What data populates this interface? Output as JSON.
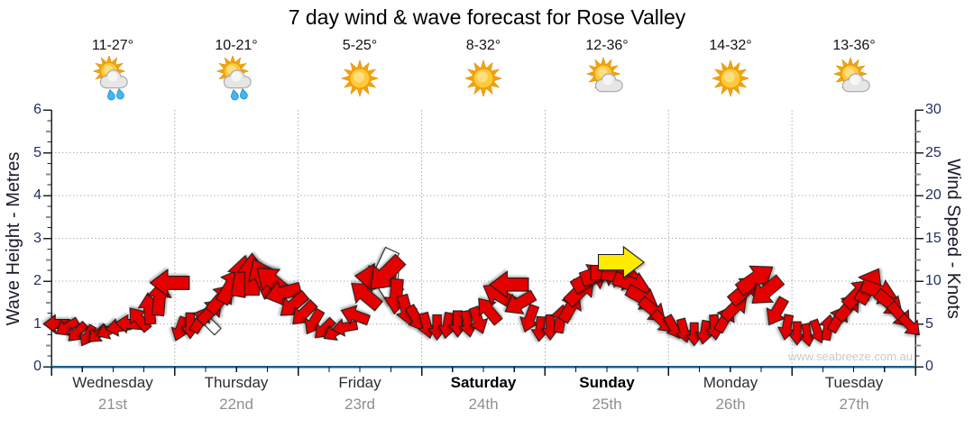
{
  "title": "7 day wind & wave forecast for Rose Valley",
  "watermark": "www.seabreeze.com.au",
  "chart_data": {
    "type": "scatter",
    "subtype": "wind-direction-arrow-timeseries",
    "title": "7 day wind & wave forecast for Rose Valley",
    "left_axis": {
      "label": "Wave Height - Metres",
      "min": 0,
      "max": 6,
      "ticks": [
        0,
        1,
        2,
        3,
        4,
        5,
        6
      ]
    },
    "right_axis": {
      "label": "Wind Speed - Knots",
      "min": 0,
      "max": 30,
      "ticks": [
        0,
        5,
        10,
        15,
        20,
        25,
        30
      ]
    },
    "x_axis": {
      "hours_total": 168,
      "days_count": 7,
      "minor_tick_hours": 6
    },
    "grid": {
      "horizontal_dotted_at_metres": [
        1,
        2,
        3,
        4,
        5
      ],
      "vertical_dotted_at_day_boundaries": true
    },
    "days": [
      {
        "name": "Wednesday",
        "date": "21st",
        "temp": "11-27°",
        "icon": "sun-cloud-rain",
        "weekend": false
      },
      {
        "name": "Thursday",
        "date": "22nd",
        "temp": "10-21°",
        "icon": "sun-cloud-rain",
        "weekend": false
      },
      {
        "name": "Friday",
        "date": "23rd",
        "temp": "5-25°",
        "icon": "sun",
        "weekend": false
      },
      {
        "name": "Saturday",
        "date": "24th",
        "temp": "8-32°",
        "icon": "sun",
        "weekend": true
      },
      {
        "name": "Sunday",
        "date": "25th",
        "temp": "12-36°",
        "icon": "sun-cloud",
        "weekend": true
      },
      {
        "name": "Monday",
        "date": "26th",
        "temp": "14-32°",
        "icon": "sun",
        "weekend": false
      },
      {
        "name": "Tuesday",
        "date": "27th",
        "temp": "13-36°",
        "icon": "sun-cloud",
        "weekend": false
      }
    ],
    "arrow_format": [
      "hour_from_start",
      "wind_speed_knots",
      "screen_direction_deg_0_is_right",
      "color_code r|w|y"
    ],
    "arrows": [
      [
        1,
        5,
        180
      ],
      [
        3,
        4.6,
        150
      ],
      [
        5,
        4,
        135
      ],
      [
        7,
        3.6,
        120
      ],
      [
        9,
        3.8,
        140
      ],
      [
        11,
        4.2,
        155
      ],
      [
        13,
        4.6,
        170
      ],
      [
        15,
        5,
        -175
      ],
      [
        17,
        5.6,
        -130
      ],
      [
        19,
        6.8,
        -95
      ],
      [
        21,
        8,
        -85
      ],
      [
        23,
        9.8,
        180
      ],
      [
        25,
        4.4,
        110
      ],
      [
        27,
        4.8,
        90
      ],
      [
        29,
        5.5,
        -60
      ],
      [
        30.5,
        5.2,
        -135,
        "w"
      ],
      [
        31,
        6.5,
        -45
      ],
      [
        33,
        8,
        -50
      ],
      [
        35,
        9.5,
        -60
      ],
      [
        37,
        10.6,
        -80
      ],
      [
        39,
        10.8,
        -90
      ],
      [
        41,
        10.4,
        -115
      ],
      [
        43,
        10,
        -140
      ],
      [
        45,
        8.6,
        165
      ],
      [
        47,
        7.2,
        140
      ],
      [
        49,
        6.2,
        135
      ],
      [
        51,
        5.2,
        120
      ],
      [
        53,
        4.4,
        135
      ],
      [
        55,
        4,
        150
      ],
      [
        57,
        4.6,
        170
      ],
      [
        59,
        6,
        -160
      ],
      [
        61,
        8.4,
        -140
      ],
      [
        63,
        10.4,
        -175
      ],
      [
        64.5,
        11.3,
        115,
        "w"
      ],
      [
        65,
        10.8,
        135
      ],
      [
        66,
        9.4,
        95,
        "w"
      ],
      [
        67,
        8.2,
        95
      ],
      [
        69,
        6.6,
        75
      ],
      [
        71,
        5.6,
        60
      ],
      [
        73,
        4.8,
        75
      ],
      [
        75,
        4.6,
        90
      ],
      [
        77,
        4.8,
        100
      ],
      [
        79,
        5,
        90
      ],
      [
        81,
        5,
        80
      ],
      [
        83,
        5.4,
        70
      ],
      [
        85,
        6.6,
        -130
      ],
      [
        87,
        8.4,
        -150
      ],
      [
        89,
        9.6,
        180
      ],
      [
        91,
        7.4,
        150
      ],
      [
        93,
        5.6,
        110
      ],
      [
        95,
        4.4,
        95
      ],
      [
        97,
        4.6,
        90
      ],
      [
        99,
        5.6,
        -80
      ],
      [
        101,
        7,
        -60
      ],
      [
        103,
        9,
        -45
      ],
      [
        105,
        10.4,
        -30
      ],
      [
        107,
        11,
        -20
      ],
      [
        109,
        11,
        0
      ],
      [
        110.8,
        12.2,
        0,
        "y"
      ],
      [
        111,
        10.6,
        10
      ],
      [
        113,
        9.6,
        20
      ],
      [
        115,
        8,
        30
      ],
      [
        117,
        6.6,
        40
      ],
      [
        119,
        5.2,
        45
      ],
      [
        121,
        4.6,
        60
      ],
      [
        123,
        4.2,
        75
      ],
      [
        125,
        3.8,
        90
      ],
      [
        127,
        4,
        100
      ],
      [
        129,
        4.6,
        85
      ],
      [
        131,
        5.6,
        -60
      ],
      [
        133,
        7,
        -45
      ],
      [
        135,
        9,
        -40
      ],
      [
        137,
        10.3,
        -35
      ],
      [
        139,
        8.8,
        140
      ],
      [
        141,
        6.4,
        120
      ],
      [
        143,
        4.6,
        100
      ],
      [
        145,
        3.9,
        90
      ],
      [
        147,
        3.7,
        80
      ],
      [
        149,
        4.1,
        70
      ],
      [
        151,
        4.6,
        -80
      ],
      [
        153,
        5.6,
        -60
      ],
      [
        155,
        7,
        -50
      ],
      [
        157,
        8.6,
        -45
      ],
      [
        159,
        9.5,
        -60
      ],
      [
        161,
        8.8,
        20
      ],
      [
        163,
        7.4,
        40
      ],
      [
        165,
        6,
        50
      ],
      [
        167,
        4.8,
        45
      ]
    ],
    "colors": {
      "arrow_red": "#e50505",
      "arrow_yellow": "#ffeb00",
      "arrow_white": "#ffffff",
      "arrow_outline": "#1a1a1a",
      "bottom_axis": "#1d5f8f",
      "axis_line": "#222222",
      "gridline": "#b3b3b3",
      "tick_label": "#1f2f63",
      "half_tick": "#8c8c8c"
    }
  }
}
